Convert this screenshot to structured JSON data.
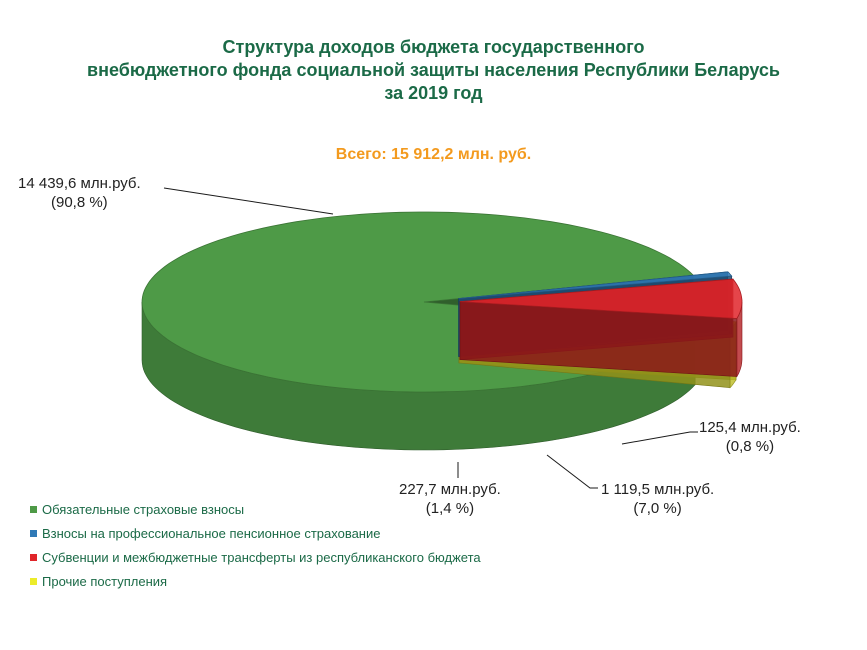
{
  "title_lines": [
    "Структура доходов бюджета государственного",
    "внебюджетного фонда социальной защиты населения Республики Беларусь",
    "за 2019 год"
  ],
  "total": "Всего: 15 912,2 млн. руб.",
  "chart_data": {
    "type": "pie",
    "title": "Структура доходов бюджета государственного внебюджетного фонда социальной защиты населения Республики Беларусь за 2019 год",
    "total_label": "Всего: 15 912,2 млн. руб.",
    "unit": "млн.руб.",
    "legend_position": "bottom-left",
    "slices": [
      {
        "name": "Обязательные страховые взносы",
        "value": 14439.6,
        "percent": 90.8,
        "color": "#4e9a47",
        "label": "14 439,6 млн.руб.",
        "percent_label": "(90,8 %)"
      },
      {
        "name": "Взносы на профессиональное пенсионное страхование",
        "value": 125.4,
        "percent": 0.8,
        "color": "#2f79b6",
        "label": "125,4 млн.руб.",
        "percent_label": "(0,8 %)"
      },
      {
        "name": "Субвенции и межбюджетные трансферты из республиканского бюджета",
        "value": 1119.5,
        "percent": 7.0,
        "color": "#e0252a",
        "label": "1 119,5 млн.руб.",
        "percent_label": "(7,0 %)"
      },
      {
        "name": "Прочие поступления",
        "value": 227.7,
        "percent": 1.4,
        "color": "#ecec2a",
        "label": "227,7 млн.руб.",
        "percent_label": "(1,4 %)"
      }
    ]
  }
}
